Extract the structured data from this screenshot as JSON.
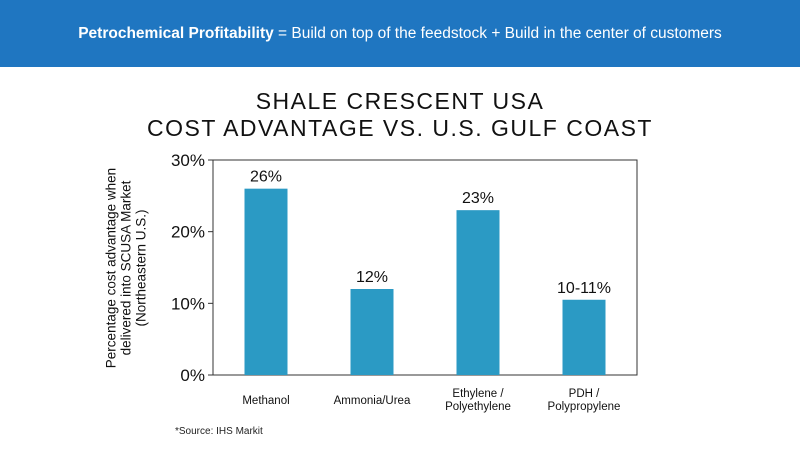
{
  "banner": {
    "bold": "Petrochemical Profitability",
    "rest": "= Build on top of the feedstock + Build in the center of customers",
    "color": "#1f76c1"
  },
  "chart_data": {
    "type": "bar",
    "title_lines": [
      "SHALE CRESCENT USA",
      "COST ADVANTAGE VS. U.S. GULF COAST"
    ],
    "ylabel_lines": [
      "Percentage cost advantage when",
      "delivered into SCUSA Market",
      "(Northeastern U.S.)"
    ],
    "xlabel": "",
    "categories": [
      [
        "Methanol"
      ],
      [
        "Ammonia/Urea"
      ],
      [
        "Ethylene /",
        "Polyethylene"
      ],
      [
        "PDH /",
        "Polypropylene"
      ]
    ],
    "values": [
      26,
      12,
      23,
      10.5
    ],
    "data_labels": [
      "26%",
      "12%",
      "23%",
      "10-11%"
    ],
    "ylim": [
      0,
      30
    ],
    "yticks": [
      0,
      10,
      20,
      30
    ],
    "ytick_labels": [
      "0%",
      "10%",
      "20%",
      "30%"
    ],
    "grid": false,
    "bar_color": "#2b9ac4"
  },
  "source": "*Source: IHS Markit"
}
